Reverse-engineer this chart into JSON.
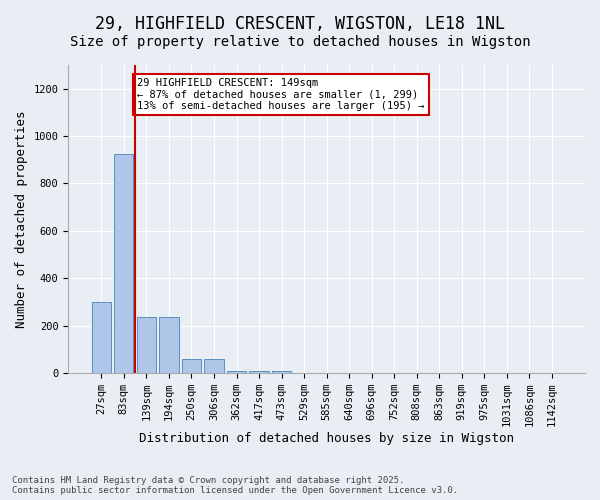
{
  "title_line1": "29, HIGHFIELD CRESCENT, WIGSTON, LE18 1NL",
  "title_line2": "Size of property relative to detached houses in Wigston",
  "xlabel": "Distribution of detached houses by size in Wigston",
  "ylabel": "Number of detached properties",
  "categories": [
    "27sqm",
    "83sqm",
    "139sqm",
    "194sqm",
    "250sqm",
    "306sqm",
    "362sqm",
    "417sqm",
    "473sqm",
    "529sqm",
    "585sqm",
    "640sqm",
    "696sqm",
    "752sqm",
    "808sqm",
    "863sqm",
    "919sqm",
    "975sqm",
    "1031sqm",
    "1086sqm",
    "1142sqm"
  ],
  "values": [
    300,
    925,
    237,
    237,
    57,
    57,
    8,
    8,
    10,
    0,
    0,
    0,
    0,
    0,
    0,
    0,
    0,
    0,
    0,
    0,
    0
  ],
  "bar_color": "#aec6e8",
  "bar_edge_color": "#5a8fc0",
  "vline_color": "#cc0000",
  "annotation_text": "29 HIGHFIELD CRESCENT: 149sqm\n← 87% of detached houses are smaller (1, 299)\n13% of semi-detached houses are larger (195) →",
  "ylim": [
    0,
    1300
  ],
  "yticks": [
    0,
    200,
    400,
    600,
    800,
    1000,
    1200
  ],
  "bg_color": "#e8eef4",
  "footer_text": "Contains HM Land Registry data © Crown copyright and database right 2025.\nContains public sector information licensed under the Open Government Licence v3.0.",
  "title_fontsize": 12,
  "subtitle_fontsize": 10,
  "tick_fontsize": 7.5,
  "ylabel_fontsize": 9,
  "xlabel_fontsize": 9
}
